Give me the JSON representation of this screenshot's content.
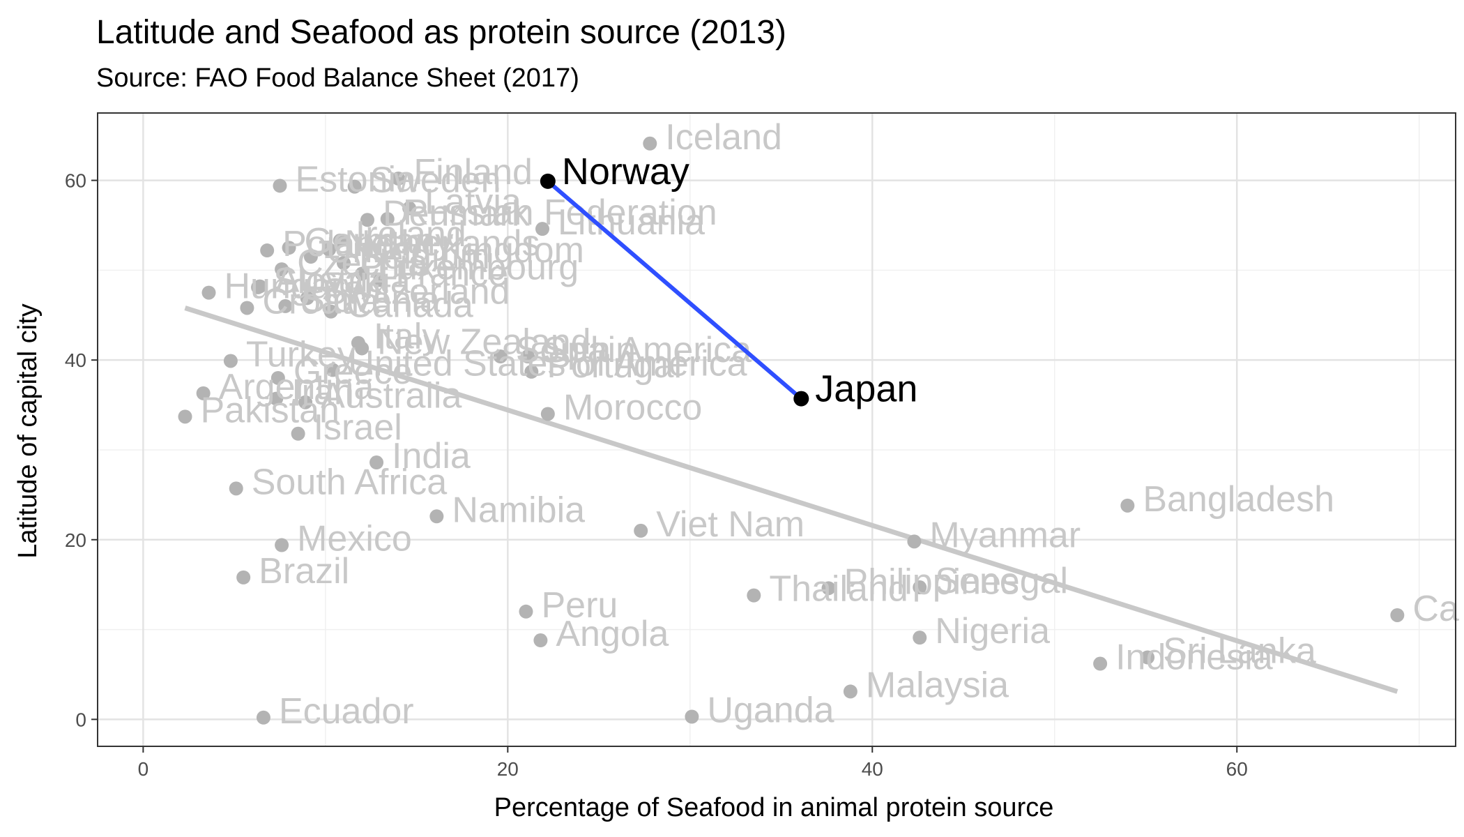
{
  "chart_data": {
    "type": "scatter",
    "title": "Latitude and Seafood as protein source (2013)",
    "subtitle": "Source: FAO Food Balance Sheet (2017)",
    "xlabel": "Percentage of Seafood in animal protein source",
    "ylabel": "Latitude of capital city",
    "xlim": [
      -2.5,
      72
    ],
    "ylim": [
      -3,
      67.5
    ],
    "xticks": [
      0,
      20,
      40,
      60
    ],
    "yticks": [
      0,
      20,
      40,
      60
    ],
    "grid": true,
    "colors": {
      "points": "#b3b3b3",
      "labels": "#c8c8c8",
      "trend": "#c8c8c8",
      "highlight_line": "#2f4fff",
      "highlight_points": "#000000"
    },
    "trend_line": {
      "x": [
        2.3,
        68.8
      ],
      "y": [
        45.8,
        3.1
      ]
    },
    "points": [
      {
        "label": "Iceland",
        "x": 27.8,
        "y": 64.1
      },
      {
        "label": "Finland",
        "x": 14.0,
        "y": 60.2
      },
      {
        "label": "Sweden",
        "x": 11.6,
        "y": 59.3
      },
      {
        "label": "Estonia",
        "x": 7.5,
        "y": 59.4
      },
      {
        "label": "Latvia",
        "x": 14.6,
        "y": 56.9
      },
      {
        "label": "Russian Federation",
        "x": 13.4,
        "y": 55.7
      },
      {
        "label": "Denmark",
        "x": 12.3,
        "y": 55.6
      },
      {
        "label": "Lithuania",
        "x": 21.9,
        "y": 54.6
      },
      {
        "label": "Ireland",
        "x": 10.8,
        "y": 53.3
      },
      {
        "label": "Germany",
        "x": 8.0,
        "y": 52.5
      },
      {
        "label": "Netherlands",
        "x": 10.2,
        "y": 52.3
      },
      {
        "label": "United Kingdom",
        "x": 9.2,
        "y": 51.5
      },
      {
        "label": "Poland",
        "x": 6.8,
        "y": 52.2
      },
      {
        "label": "Belgium",
        "x": 11.0,
        "y": 50.8
      },
      {
        "label": "Luxembourg",
        "x": 12.0,
        "y": 49.6
      },
      {
        "label": "Czechia",
        "x": 7.6,
        "y": 50.1
      },
      {
        "label": "France",
        "x": 13.0,
        "y": 48.9
      },
      {
        "label": "Austria",
        "x": 6.4,
        "y": 48.2
      },
      {
        "label": "Switzerland",
        "x": 9.0,
        "y": 46.9
      },
      {
        "label": "Slovakia",
        "x": 6.3,
        "y": 48.1
      },
      {
        "label": "Hungary",
        "x": 3.6,
        "y": 47.5
      },
      {
        "label": "Slovenia",
        "x": 7.8,
        "y": 46.0
      },
      {
        "label": "Croatia",
        "x": 5.7,
        "y": 45.8
      },
      {
        "label": "Canada",
        "x": 10.3,
        "y": 45.4
      },
      {
        "label": "Italy",
        "x": 11.8,
        "y": 41.9
      },
      {
        "label": "New Zealand",
        "x": 12.0,
        "y": 41.3
      },
      {
        "label": "United States of America",
        "x": 10.4,
        "y": 38.9
      },
      {
        "label": "South America",
        "x": 19.6,
        "y": 40.4
      },
      {
        "label": "Spain",
        "x": 21.1,
        "y": 40.4
      },
      {
        "label": "Portugal",
        "x": 21.3,
        "y": 38.7
      },
      {
        "label": "Turkey",
        "x": 4.8,
        "y": 39.9
      },
      {
        "label": "Greece",
        "x": 7.4,
        "y": 38.0
      },
      {
        "label": "Australia",
        "x": 8.9,
        "y": 35.3
      },
      {
        "label": "Morocco",
        "x": 22.2,
        "y": 34.0
      },
      {
        "label": "Argentina",
        "x": 3.3,
        "y": 36.3
      },
      {
        "label": "Pakistan",
        "x": 2.3,
        "y": 33.7
      },
      {
        "label": "Iran",
        "x": 7.3,
        "y": 35.7
      },
      {
        "label": "Israel",
        "x": 8.5,
        "y": 31.8
      },
      {
        "label": "India",
        "x": 12.8,
        "y": 28.6
      },
      {
        "label": "South Africa",
        "x": 5.1,
        "y": 25.7
      },
      {
        "label": "Namibia",
        "x": 16.1,
        "y": 22.6
      },
      {
        "label": "Viet Nam",
        "x": 27.3,
        "y": 21.0
      },
      {
        "label": "Bangladesh",
        "x": 54.0,
        "y": 23.8
      },
      {
        "label": "Myanmar",
        "x": 42.3,
        "y": 19.8
      },
      {
        "label": "Mexico",
        "x": 7.6,
        "y": 19.4
      },
      {
        "label": "Brazil",
        "x": 5.5,
        "y": 15.8
      },
      {
        "label": "Thailand",
        "x": 33.5,
        "y": 13.8
      },
      {
        "label": "Philippines",
        "x": 37.6,
        "y": 14.6
      },
      {
        "label": "Senegal",
        "x": 42.6,
        "y": 14.7
      },
      {
        "label": "Peru",
        "x": 21.0,
        "y": 12.0
      },
      {
        "label": "Nigeria",
        "x": 42.6,
        "y": 9.1
      },
      {
        "label": "Angola",
        "x": 21.8,
        "y": 8.8
      },
      {
        "label": "Ca",
        "x": 68.8,
        "y": 11.6
      },
      {
        "label": "Sri Lanka",
        "x": 55.1,
        "y": 6.9
      },
      {
        "label": "Indonesia",
        "x": 52.5,
        "y": 6.2
      },
      {
        "label": "Malaysia",
        "x": 38.8,
        "y": 3.1
      },
      {
        "label": "Ecuador",
        "x": 6.6,
        "y": 0.2
      },
      {
        "label": "Uganda",
        "x": 30.1,
        "y": 0.3
      }
    ],
    "highlight": [
      {
        "label": "Norway",
        "x": 22.2,
        "y": 59.9
      },
      {
        "label": "Japan",
        "x": 36.1,
        "y": 35.7
      }
    ]
  }
}
